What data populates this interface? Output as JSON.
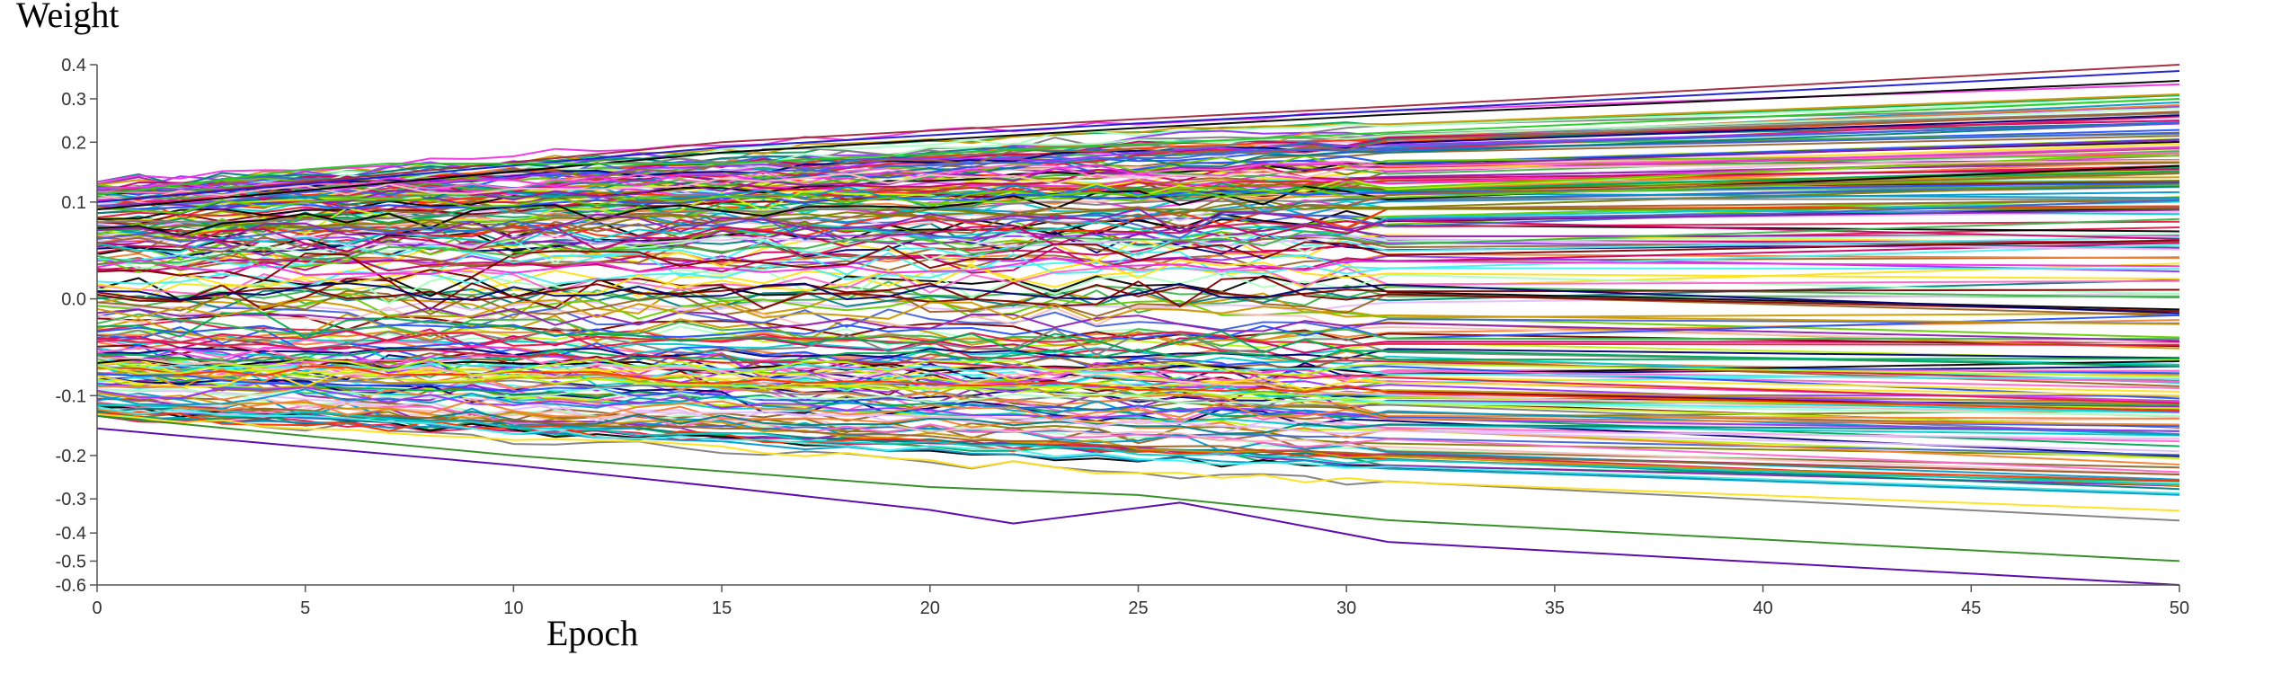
{
  "chart_data": {
    "type": "line",
    "title": "",
    "xlabel": "Epoch",
    "ylabel": "Weight",
    "y_scale": "symlog",
    "xlim": [
      0,
      50
    ],
    "ylim": [
      -0.6,
      0.4
    ],
    "grid": false,
    "legend": "none",
    "x_ticks": [
      "0",
      "5",
      "10",
      "15",
      "20",
      "25",
      "30",
      "35",
      "40",
      "45",
      "50"
    ],
    "y_ticks": [
      "0.4",
      "0.3",
      "0.2",
      "0.1",
      "0.0",
      "-0.1",
      "-0.2",
      "-0.3",
      "-0.4",
      "-0.5",
      "-0.6"
    ],
    "y_tick_values": [
      0.4,
      0.3,
      0.2,
      0.1,
      0.0,
      -0.1,
      -0.2,
      -0.3,
      -0.4,
      -0.5,
      -0.6
    ],
    "sample_series": [
      {
        "color": "#5500aa",
        "points": [
          [
            0,
            -0.15
          ],
          [
            10,
            -0.22
          ],
          [
            15,
            -0.27
          ],
          [
            20,
            -0.33
          ],
          [
            22,
            -0.37
          ],
          [
            26,
            -0.31
          ],
          [
            31,
            -0.43
          ],
          [
            50,
            -0.6
          ]
        ]
      },
      {
        "color": "#2d8c1e",
        "points": [
          [
            0,
            -0.13
          ],
          [
            10,
            -0.2
          ],
          [
            20,
            -0.27
          ],
          [
            25,
            -0.29
          ],
          [
            31,
            -0.36
          ],
          [
            50,
            -0.5
          ]
        ]
      },
      {
        "color": "#a0283c",
        "points": [
          [
            0,
            0.1
          ],
          [
            15,
            0.2
          ],
          [
            25,
            0.25
          ],
          [
            31,
            0.28
          ],
          [
            50,
            0.4
          ]
        ]
      },
      {
        "color": "#1a1ad0",
        "points": [
          [
            0,
            0.1
          ],
          [
            15,
            0.19
          ],
          [
            25,
            0.24
          ],
          [
            31,
            0.27
          ],
          [
            50,
            0.38
          ]
        ]
      },
      {
        "color": "#000000",
        "points": [
          [
            0,
            0.09
          ],
          [
            15,
            0.18
          ],
          [
            25,
            0.23
          ],
          [
            31,
            0.26
          ],
          [
            50,
            0.35
          ]
        ]
      },
      {
        "color": "#22cc22",
        "points": [
          [
            0,
            0.11
          ],
          [
            5,
            0.15
          ],
          [
            7,
            0.16
          ],
          [
            15,
            0.16
          ],
          [
            31,
            0.22
          ],
          [
            50,
            0.3
          ]
        ]
      }
    ],
    "generated_series": {
      "count": 220,
      "palette": [
        "#e6194b",
        "#3cb44b",
        "#ffe119",
        "#4363d8",
        "#f58231",
        "#911eb4",
        "#46f0f0",
        "#f032e6",
        "#bcf60c",
        "#fabebe",
        "#008080",
        "#e6beff",
        "#9a6324",
        "#800000",
        "#aaffc3",
        "#808000",
        "#000075",
        "#808080",
        "#000000",
        "#00aa55",
        "#cc0066",
        "#2255ff",
        "#66cc00",
        "#ff3300",
        "#0099cc",
        "#9933ff",
        "#996633",
        "#00cccc",
        "#cc9900",
        "#ff66cc"
      ]
    }
  }
}
